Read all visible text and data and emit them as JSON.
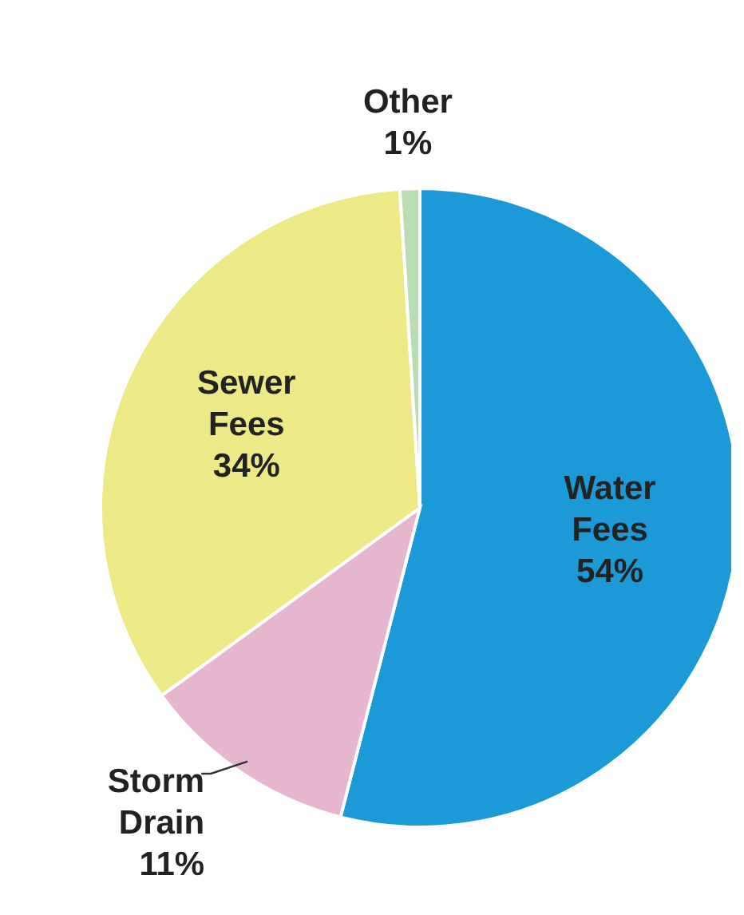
{
  "chart_data": {
    "type": "pie",
    "categories": [
      "Water Fees",
      "Storm Drain",
      "Sewer Fees",
      "Other"
    ],
    "values": [
      54,
      11,
      34,
      1
    ],
    "colors": [
      "#1b9ad7",
      "#e6b6cf",
      "#ece986",
      "#bcdcb4"
    ],
    "value_labels": [
      "54%",
      "11%",
      "34%",
      "1%"
    ],
    "legend": false
  }
}
